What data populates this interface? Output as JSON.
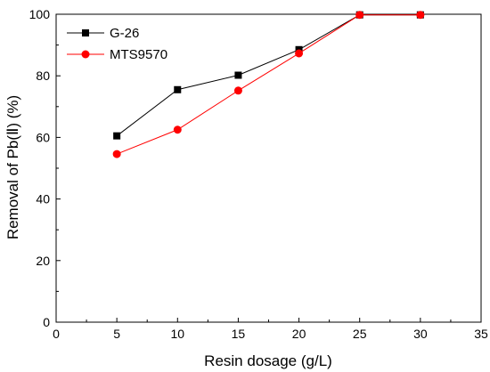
{
  "chart_data": {
    "type": "line",
    "title": "",
    "xlabel": "Resin dosage (g/L)",
    "ylabel": "Removal of Pb(Ⅱ) (%)",
    "xlim": [
      0,
      35
    ],
    "ylim": [
      0,
      100
    ],
    "xticks": [
      "0",
      "5",
      "10",
      "15",
      "20",
      "25",
      "30",
      "35"
    ],
    "yticks": [
      "0",
      "20",
      "40",
      "60",
      "80",
      "100"
    ],
    "grid": false,
    "legend": "top-left",
    "series": [
      {
        "name": "G-26",
        "color": "#000000",
        "marker": "square",
        "x": [
          5,
          10,
          15,
          20,
          25,
          30
        ],
        "y": [
          60.5,
          75.5,
          80.2,
          88.5,
          99.8,
          99.8
        ]
      },
      {
        "name": "MTS9570",
        "color": "#ff0000",
        "marker": "circle",
        "x": [
          5,
          10,
          15,
          20,
          25,
          30
        ],
        "y": [
          54.6,
          62.5,
          75.2,
          87.3,
          99.8,
          99.8
        ]
      }
    ]
  }
}
